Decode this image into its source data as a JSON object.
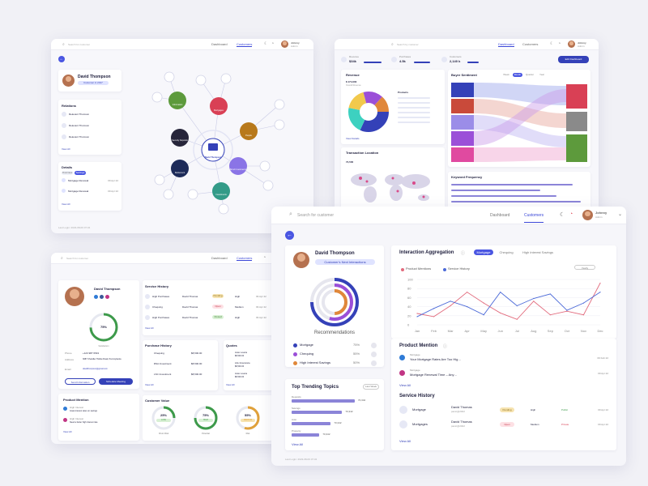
{
  "w1": {
    "search_placeholder": "Search for customer",
    "tabs": [
      "Dashboard",
      "Customers"
    ],
    "user": {
      "name": "Johnny",
      "role": "Admin"
    },
    "profile": {
      "name": "David Thompson",
      "badge": "Customer in 2017"
    },
    "relations": {
      "title": "Relations",
      "items": [
        "Relevant Thomson",
        "Relevant Thomson",
        "Relevant Thomson"
      ],
      "view_all": "View All"
    },
    "details": {
      "title": "Details",
      "tabs": [
        "Overview",
        "Settings"
      ],
      "items": [
        {
          "label": "Mortgage Renewal",
          "date": "09 Apr 22"
        },
        {
          "label": "Mortgage Renewal",
          "date": "09 Apr 22"
        },
        {
          "label": "Mortgage Renewal",
          "date": "09 Apr 22"
        }
      ],
      "view_all": "View All"
    },
    "graph_center": "David Thompson",
    "nodes": [
      "Information",
      "Mortgages",
      "People",
      "Security Deposits",
      "Retirement",
      "Bond Investments",
      "Investments"
    ],
    "footer": "Last Login: 2023-08-06 07:34"
  },
  "w2": {
    "search_placeholder": "Search by customer",
    "tabs": [
      "Dashboard",
      "Customers"
    ],
    "user": {
      "name": "Johnny",
      "role": "Admin"
    },
    "stats": [
      {
        "label": "Revenue",
        "value": "$34k"
      },
      {
        "label": "Purchases",
        "value": "4.5k"
      },
      {
        "label": "Customers",
        "value": "2,140 k"
      }
    ],
    "edit_button": "Edit Dashboard",
    "revenue": {
      "title": "Revenue",
      "amount": "$ 174,000",
      "sub": "Overall Revenue",
      "products_title": "Products",
      "view_details": "View Details"
    },
    "sentiment": {
      "title": "Buyer Sentiment",
      "filters": [
        "Week",
        "Month",
        "Quarter",
        "Year"
      ]
    },
    "location": {
      "title": "Transaction Location",
      "value": "74,500"
    },
    "keywords": {
      "title": "Keyword Frequency"
    }
  },
  "w3": {
    "search_placeholder": "Search for customer",
    "tabs": [
      "Dashboard",
      "Customers"
    ],
    "user": {
      "name": "Johnny",
      "role": "Admin"
    },
    "profile": {
      "name": "David Thompson",
      "score": "75%",
      "score_label": "Satisfaction"
    },
    "contact": [
      {
        "k": "Phone",
        "v": "+123 987 6543"
      },
      {
        "k": "Address",
        "v": "3087 Chandler Hollow Road, Pennsylvania"
      },
      {
        "k": "Email",
        "v": "davidthompson@gmail.com"
      }
    ],
    "buttons": [
      "Send Information",
      "Schedule Meeting"
    ],
    "service_history": {
      "title": "Service History",
      "rows": [
        {
          "type": "High Purchases",
          "name": "David Thomas",
          "status": "Pending",
          "prio": "High",
          "channel": "Public",
          "date": "09 Apr 22"
        },
        {
          "type": "Chequing",
          "name": "David Thomas",
          "status": "Open",
          "prio": "Medium",
          "channel": "Private",
          "date": "09 Apr 22"
        },
        {
          "type": "High Purchases",
          "name": "David Thomas",
          "status": "Closed",
          "prio": "High",
          "channel": "Public",
          "date": "09 Apr 22"
        }
      ],
      "view_all": "View All"
    },
    "purchase_history": {
      "title": "Purchase History",
      "rows": [
        {
          "label": "Chequing",
          "amount": "$8,500.00"
        },
        {
          "label": "RSA Investment",
          "amount": "$8,500.00"
        },
        {
          "label": "LSC Investment",
          "amount": "$8,500.00"
        }
      ],
      "view_all": "View All"
    },
    "quotes": {
      "title": "Quotes",
      "rows": [
        {
          "label": "Auto Loans",
          "amount": "$8,500.00"
        },
        {
          "label": "Life Insurance",
          "amount": "$8,500.00"
        },
        {
          "label": "Auto Loans",
          "amount": "$8,500.00"
        }
      ],
      "view_all": "View All"
    },
    "product_mention": {
      "title": "Product Mention",
      "rows": [
        {
          "src": "High Interest",
          "text": "Great interest rates on savings"
        },
        {
          "src": "High Interest",
          "text": "Need a better high interest rate"
        }
      ],
      "view_all": "View All"
    },
    "customer_value": {
      "title": "Customer Value",
      "gauges": [
        {
          "value": "25%",
          "tag": "LOW",
          "label": "Churn Risk",
          "pct": 25
        },
        {
          "value": "75%",
          "tag": "HIGH",
          "label": "Potential",
          "pct": 75
        },
        {
          "value": "55%",
          "tag": "MEDIUM",
          "label": "Risk",
          "pct": 55
        }
      ]
    }
  },
  "w4": {
    "search_placeholder": "Search for customer",
    "tabs": [
      "Dashboard",
      "Customers"
    ],
    "user": {
      "name": "Johnny",
      "role": "Admin"
    },
    "profile": {
      "name": "David Thompson",
      "badge": "Customer's Next Interactions"
    },
    "recommendations": {
      "title": "Recommendations",
      "items": [
        {
          "label": "Mortgage",
          "pct": "75%",
          "color": "#3441b8"
        },
        {
          "label": "Chequing",
          "pct": "55%",
          "color": "#9b4fd8"
        },
        {
          "label": "High Interest Savings",
          "pct": "50%",
          "color": "#e0873a"
        }
      ]
    },
    "trending": {
      "title": "Top Trending Topics",
      "filter": "Last Week",
      "items": [
        {
          "label": "Deposits",
          "value": "70,342",
          "pct": 100
        },
        {
          "label": "Savings",
          "value": "70,342",
          "pct": 80
        },
        {
          "label": "Auto",
          "value": "70,342",
          "pct": 62
        },
        {
          "label": "Property",
          "value": "70,342",
          "pct": 44
        }
      ],
      "view_all": "View All"
    },
    "interaction": {
      "title": "Interaction Aggregation",
      "tabs": [
        "Mortgage",
        "Chequing",
        "High Interest Savings"
      ],
      "filter": "Yearly",
      "legend": [
        "Product Mentions",
        "Service History"
      ]
    },
    "product_mention": {
      "title": "Product Mention",
      "rows": [
        {
          "src": "Mortgage",
          "text": "Your Mortgage Rates Are Too Hig…",
          "date": "09 Feb 22"
        },
        {
          "src": "Mortgage",
          "text": "Mortgage Renewal Time – Any…",
          "date": "09 Apr 22"
        }
      ],
      "view_all": "View All"
    },
    "service_history": {
      "title": "Service History",
      "rows": [
        {
          "type": "Mortgage",
          "name": "David Thomas",
          "sub": "panic@2022",
          "status": "Pending",
          "prio": "High",
          "channel": "Public",
          "date": "09 Apr 22"
        },
        {
          "type": "Mortgages",
          "name": "David Thomas",
          "sub": "panic@2022",
          "status": "Open",
          "prio": "Medium",
          "channel": "Private",
          "date": "09 Apr 22"
        }
      ],
      "view_all": "View All"
    },
    "footer": "Last Login: 2023-08-06 07:34"
  },
  "chart_data": {
    "type": "line",
    "categories": [
      "Jan",
      "Feb",
      "Mar",
      "Apr",
      "May",
      "Jun",
      "Jul",
      "Aug",
      "Sep",
      "Oct",
      "Nov",
      "Dec"
    ],
    "series": [
      {
        "name": "Product Mentions",
        "color": "#e26b7d",
        "values": [
          25,
          18,
          42,
          72,
          48,
          26,
          12,
          52,
          22,
          30,
          22,
          92
        ]
      },
      {
        "name": "Service History",
        "color": "#4c6ad8",
        "values": [
          18,
          36,
          52,
          40,
          22,
          72,
          42,
          58,
          68,
          32,
          48,
          72
        ]
      }
    ],
    "ylim": [
      0,
      100
    ],
    "yticks": [
      "100",
      "80",
      "60",
      "40",
      "20",
      "0"
    ]
  }
}
